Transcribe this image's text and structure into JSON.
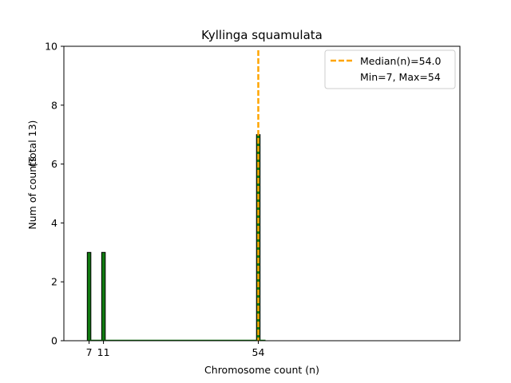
{
  "chart_data": {
    "type": "bar",
    "title": "Kyllinga squamulata",
    "xlabel": "Chromosome count (n)",
    "ylabel": "Num of counts",
    "ylabel_total": "(Total 13)",
    "xlim": [
      0,
      110
    ],
    "ylim": [
      0,
      10
    ],
    "yticks": [
      0,
      2,
      4,
      6,
      8,
      10
    ],
    "xticks": [
      7,
      11,
      54
    ],
    "bar_width": 1,
    "bars": [
      {
        "x": 7,
        "count": 3
      },
      {
        "x": 11,
        "count": 3
      },
      {
        "x": 54,
        "count": 7
      }
    ],
    "median": 54.0,
    "median_label": "Median(n)=54.0",
    "range_label": "Min=7, Max=54",
    "grid": false,
    "legend_position": "top-right",
    "colors": {
      "bar_fill": "#117a11",
      "bar_edge": "#000000",
      "median_line": "#ffa500",
      "axis": "#000000"
    }
  }
}
